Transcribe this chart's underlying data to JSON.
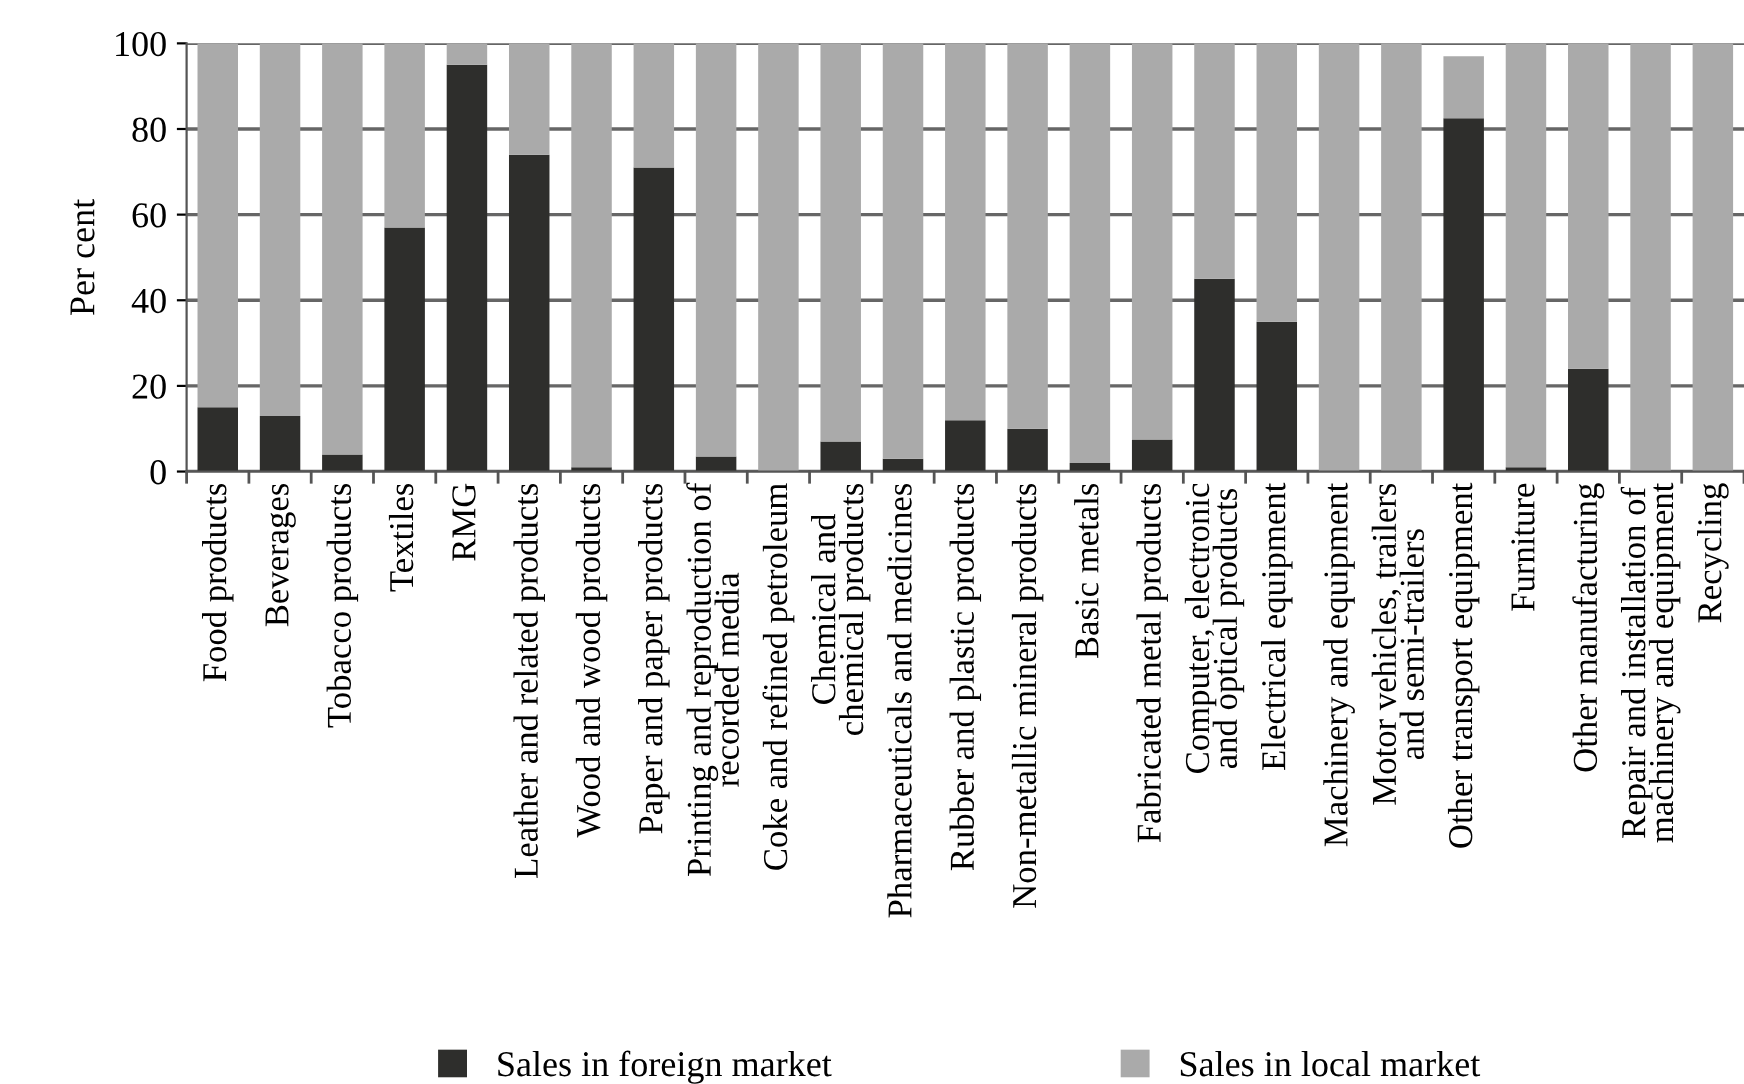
{
  "chart_data": {
    "type": "bar",
    "stacked": true,
    "ylabel": "Per cent",
    "categories": [
      "Food products",
      "Beverages",
      "Tobacco products",
      "Textiles",
      "RMG",
      "Leather and related products",
      "Wood and wood products",
      "Paper and paper products",
      "Printing and reproduction of\nrecorded media",
      "Coke and refined petroleum",
      "Chemical and\nchemical products",
      "Pharmaceuticals and medicines",
      "Rubber and plastic products",
      "Non-metallic mineral products",
      "Basic metals",
      "Fabricated metal products",
      "Computer, electronic\nand optical products",
      "Electrical equipment",
      "Machinery and equipment",
      "Motor vehicles, trailers\nand semi-trailers",
      "Other transport equipment",
      "Furniture",
      "Other manufacturing",
      "Repair and installation of\nmachinery and equipment",
      "Recycling"
    ],
    "series": [
      {
        "name": "Sales in foreign market",
        "color": "#2e2e2c",
        "values": [
          15,
          13,
          4,
          57,
          95,
          74,
          1,
          71,
          3.5,
          0,
          7,
          3,
          12,
          10,
          2,
          7.5,
          45,
          35,
          0,
          0,
          82.5,
          1,
          24,
          0,
          0
        ]
      },
      {
        "name": "Sales in local market",
        "color": "#aaaaaa",
        "values": [
          85,
          87,
          96,
          43,
          5,
          26,
          99,
          29,
          96.5,
          100,
          93,
          97,
          88,
          90,
          98,
          92.5,
          55,
          65,
          100,
          100,
          14.5,
          99,
          76,
          100,
          100
        ]
      }
    ],
    "ylim": [
      0,
      100
    ],
    "yticks": [
      0,
      20,
      40,
      60,
      80,
      100
    ],
    "grid": "y",
    "legend": "bottom"
  }
}
